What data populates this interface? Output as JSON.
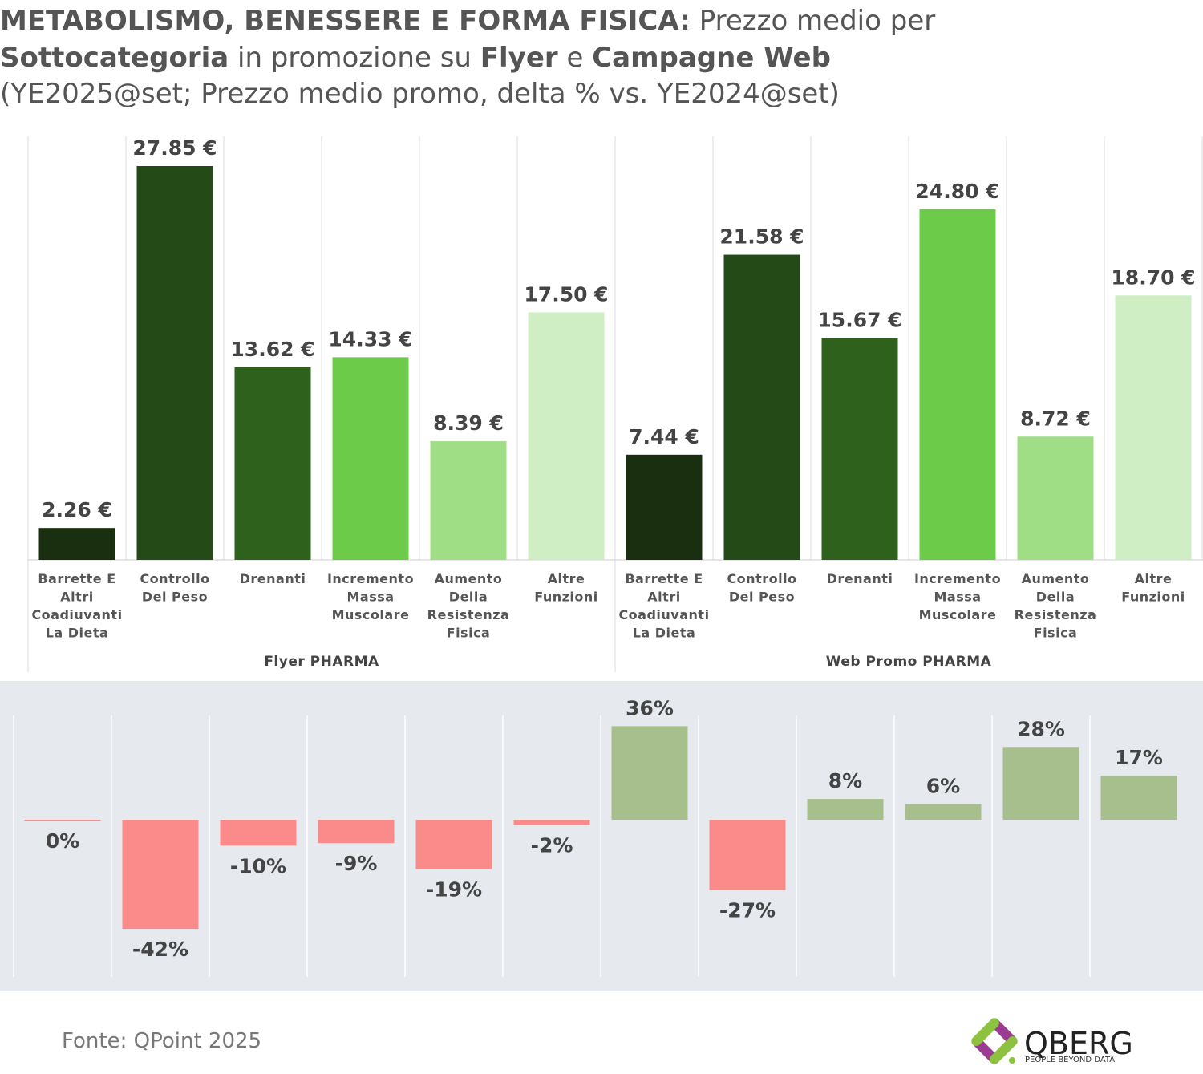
{
  "title": {
    "line1_bold": "METABOLISMO, BENESSERE E FORMA FISICA:",
    "line1_rest": " Prezzo medio per",
    "line2_b1": "Sottocategoria",
    "line2_t1": " in promozione su ",
    "line2_b2": "Flyer",
    "line2_t2": " e ",
    "line2_b3": "Campagne Web",
    "line3": "(YE2025@set; Prezzo medio promo, delta % vs. YE2024@set)"
  },
  "source": "Fonte: QPoint 2025",
  "logo": {
    "name": "QBERG",
    "tagline": "PEOPLE BEYOND DATA"
  },
  "colors": {
    "subcategory": [
      "#1a2f10",
      "#234a17",
      "#2e621c",
      "#6ccc4a",
      "#a0de86",
      "#cfeec4"
    ],
    "positive": "#a7bf8c",
    "negative": "#fb8a8a",
    "panel_bg": "#e6eaee"
  },
  "chart_data": [
    {
      "type": "bar",
      "title": "Prezzo medio promo YE2025@set (€)",
      "groups": [
        "Flyer PHARMA",
        "Web Promo PHARMA"
      ],
      "categories": [
        [
          "Barrette E",
          "Altri",
          "Coadiuvanti",
          "La Dieta"
        ],
        [
          "Controllo",
          "Del Peso"
        ],
        [
          "Drenanti"
        ],
        [
          "Incremento",
          "Massa",
          "Muscolare"
        ],
        [
          "Aumento",
          "Della",
          "Resistenza",
          "Fisica"
        ],
        [
          "Altre",
          "Funzioni"
        ]
      ],
      "series": [
        {
          "name": "Flyer PHARMA",
          "values": [
            2.26,
            27.85,
            13.62,
            14.33,
            8.39,
            17.5
          ],
          "labels": [
            "2.26 €",
            "27.85 €",
            "13.62 €",
            "14.33 €",
            "8.39 €",
            "17.50 €"
          ]
        },
        {
          "name": "Web Promo PHARMA",
          "values": [
            7.44,
            21.58,
            15.67,
            24.8,
            8.72,
            18.7
          ],
          "labels": [
            "7.44 €",
            "21.58 €",
            "15.67 €",
            "24.80 €",
            "8.72 €",
            "18.70 €"
          ]
        }
      ],
      "ylim": [
        0,
        28
      ]
    },
    {
      "type": "bar",
      "title": "Delta % vs. YE2024@set",
      "values": [
        0,
        -42,
        -10,
        -9,
        -19,
        -2,
        36,
        -27,
        8,
        6,
        28,
        17
      ],
      "labels": [
        "0%",
        "-42%",
        "-10%",
        "-9%",
        "-19%",
        "-2%",
        "36%",
        "-27%",
        "8%",
        "6%",
        "28%",
        "17%"
      ],
      "ylim": [
        -45,
        40
      ]
    }
  ]
}
